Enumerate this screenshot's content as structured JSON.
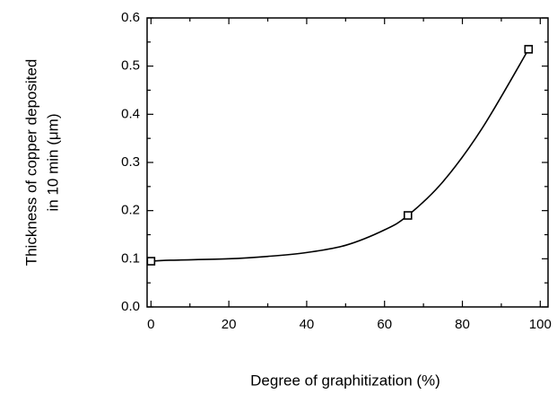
{
  "chart_data": {
    "type": "scatter",
    "ylabel": [
      "Thickness of copper deposited",
      "in 10 min (μm)"
    ],
    "xlabel": "Degree of graphitization (%)",
    "xlim": [
      -1,
      102
    ],
    "ylim": [
      0,
      0.6
    ],
    "xticks": [
      0,
      20,
      40,
      60,
      80,
      100
    ],
    "yticks": [
      {
        "value": 0,
        "label": "0.0"
      },
      0.1,
      0.2,
      0.3,
      0.4,
      0.5,
      0.6
    ],
    "color": "#000000",
    "series": [
      {
        "kind": "markers",
        "x": [
          0,
          66,
          97
        ],
        "values": [
          0.095,
          0.19,
          0.535
        ]
      },
      {
        "kind": "curve",
        "x": [
          0,
          5,
          20,
          30,
          40,
          50,
          60,
          66,
          75,
          85,
          97
        ],
        "values": [
          0.095,
          0.097,
          0.1,
          0.105,
          0.113,
          0.128,
          0.16,
          0.19,
          0.26,
          0.37,
          0.535
        ]
      }
    ]
  }
}
